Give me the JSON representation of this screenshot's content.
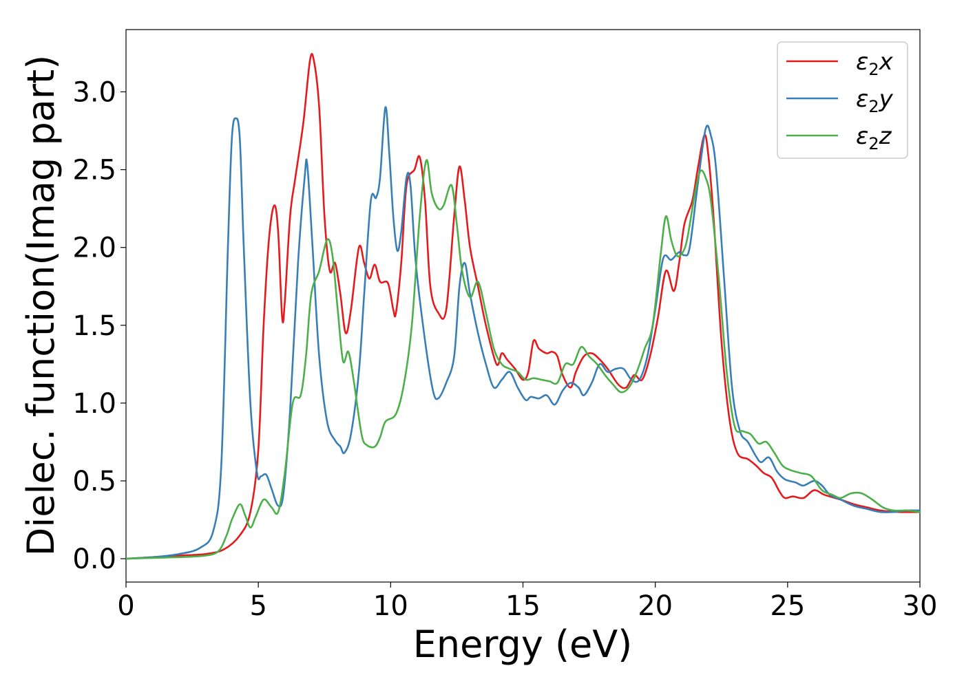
{
  "chart_data": {
    "type": "line",
    "title": "",
    "xlabel": "Energy (eV)",
    "ylabel": "Dielec. function(Imag part)",
    "xlim": [
      0,
      30
    ],
    "ylim": [
      -0.15,
      3.4
    ],
    "xticks": [
      0,
      5,
      10,
      15,
      20,
      25,
      30
    ],
    "xtick_labels": [
      "0",
      "5",
      "10",
      "15",
      "20",
      "25",
      "30"
    ],
    "yticks": [
      0.0,
      0.5,
      1.0,
      1.5,
      2.0,
      2.5,
      3.0
    ],
    "ytick_labels": [
      "0.0",
      "0.5",
      "1.0",
      "1.5",
      "2.0",
      "2.5",
      "3.0"
    ],
    "grid": false,
    "legend_position": "top-right",
    "series": [
      {
        "name": "ε₂x",
        "legend_base": "ε",
        "legend_sub": "2",
        "legend_suffix": "x",
        "color": "#e41a1c",
        "points": [
          [
            0,
            0
          ],
          [
            1,
            0.01
          ],
          [
            2,
            0.02
          ],
          [
            3,
            0.03
          ],
          [
            3.7,
            0.06
          ],
          [
            4.3,
            0.15
          ],
          [
            4.7,
            0.3
          ],
          [
            5.0,
            0.7
          ],
          [
            5.2,
            1.5
          ],
          [
            5.4,
            2.05
          ],
          [
            5.6,
            2.27
          ],
          [
            5.75,
            2.1
          ],
          [
            5.9,
            1.55
          ],
          [
            6.0,
            1.65
          ],
          [
            6.2,
            2.2
          ],
          [
            6.4,
            2.45
          ],
          [
            6.7,
            2.8
          ],
          [
            6.95,
            3.2
          ],
          [
            7.1,
            3.2
          ],
          [
            7.3,
            2.9
          ],
          [
            7.5,
            2.2
          ],
          [
            7.7,
            1.85
          ],
          [
            7.9,
            1.9
          ],
          [
            8.1,
            1.7
          ],
          [
            8.3,
            1.45
          ],
          [
            8.5,
            1.6
          ],
          [
            8.8,
            2.0
          ],
          [
            9.0,
            1.9
          ],
          [
            9.2,
            1.8
          ],
          [
            9.4,
            1.89
          ],
          [
            9.6,
            1.78
          ],
          [
            9.9,
            1.77
          ],
          [
            10.1,
            1.6
          ],
          [
            10.2,
            1.58
          ],
          [
            10.4,
            1.9
          ],
          [
            10.6,
            2.4
          ],
          [
            10.9,
            2.5
          ],
          [
            11.1,
            2.58
          ],
          [
            11.3,
            2.3
          ],
          [
            11.5,
            1.75
          ],
          [
            11.8,
            1.58
          ],
          [
            12.1,
            1.6
          ],
          [
            12.4,
            2.2
          ],
          [
            12.6,
            2.52
          ],
          [
            12.8,
            2.3
          ],
          [
            13.0,
            2.0
          ],
          [
            13.3,
            1.75
          ],
          [
            13.6,
            1.5
          ],
          [
            14.0,
            1.25
          ],
          [
            14.2,
            1.32
          ],
          [
            14.4,
            1.28
          ],
          [
            14.7,
            1.22
          ],
          [
            15.0,
            1.15
          ],
          [
            15.2,
            1.2
          ],
          [
            15.4,
            1.4
          ],
          [
            15.6,
            1.35
          ],
          [
            15.9,
            1.32
          ],
          [
            16.1,
            1.33
          ],
          [
            16.3,
            1.3
          ],
          [
            16.5,
            1.18
          ],
          [
            16.8,
            1.1
          ],
          [
            17.0,
            1.2
          ],
          [
            17.3,
            1.3
          ],
          [
            17.6,
            1.32
          ],
          [
            17.9,
            1.28
          ],
          [
            18.2,
            1.22
          ],
          [
            18.6,
            1.12
          ],
          [
            18.9,
            1.1
          ],
          [
            19.2,
            1.18
          ],
          [
            19.5,
            1.15
          ],
          [
            19.8,
            1.3
          ],
          [
            20.1,
            1.55
          ],
          [
            20.4,
            1.85
          ],
          [
            20.7,
            1.72
          ],
          [
            20.9,
            1.9
          ],
          [
            21.1,
            2.15
          ],
          [
            21.4,
            2.3
          ],
          [
            21.6,
            2.5
          ],
          [
            21.85,
            2.72
          ],
          [
            22.0,
            2.6
          ],
          [
            22.2,
            2.2
          ],
          [
            22.5,
            1.4
          ],
          [
            22.8,
            0.9
          ],
          [
            23.1,
            0.68
          ],
          [
            23.5,
            0.64
          ],
          [
            23.8,
            0.6
          ],
          [
            24.1,
            0.55
          ],
          [
            24.4,
            0.52
          ],
          [
            24.7,
            0.43
          ],
          [
            24.9,
            0.39
          ],
          [
            25.2,
            0.4
          ],
          [
            25.6,
            0.39
          ],
          [
            26.0,
            0.44
          ],
          [
            26.4,
            0.41
          ],
          [
            27.0,
            0.38
          ],
          [
            27.5,
            0.35
          ],
          [
            28.0,
            0.33
          ],
          [
            28.5,
            0.31
          ],
          [
            29.2,
            0.3
          ],
          [
            30,
            0.3
          ]
        ]
      },
      {
        "name": "ε₂y",
        "legend_base": "ε",
        "legend_sub": "2",
        "legend_suffix": "y",
        "color": "#377eb8",
        "points": [
          [
            0,
            0
          ],
          [
            1,
            0.01
          ],
          [
            2,
            0.03
          ],
          [
            2.8,
            0.07
          ],
          [
            3.3,
            0.18
          ],
          [
            3.6,
            0.6
          ],
          [
            3.85,
            2.0
          ],
          [
            4.0,
            2.7
          ],
          [
            4.15,
            2.83
          ],
          [
            4.3,
            2.7
          ],
          [
            4.45,
            2.0
          ],
          [
            4.7,
            1.0
          ],
          [
            4.95,
            0.55
          ],
          [
            5.1,
            0.53
          ],
          [
            5.3,
            0.54
          ],
          [
            5.5,
            0.45
          ],
          [
            5.75,
            0.34
          ],
          [
            5.95,
            0.42
          ],
          [
            6.2,
            0.95
          ],
          [
            6.5,
            1.9
          ],
          [
            6.75,
            2.45
          ],
          [
            6.85,
            2.53
          ],
          [
            7.05,
            2.0
          ],
          [
            7.3,
            1.3
          ],
          [
            7.6,
            0.88
          ],
          [
            7.9,
            0.76
          ],
          [
            8.1,
            0.72
          ],
          [
            8.25,
            0.68
          ],
          [
            8.5,
            0.8
          ],
          [
            8.8,
            1.2
          ],
          [
            9.0,
            1.7
          ],
          [
            9.25,
            2.3
          ],
          [
            9.45,
            2.32
          ],
          [
            9.6,
            2.45
          ],
          [
            9.8,
            2.9
          ],
          [
            9.95,
            2.6
          ],
          [
            10.1,
            2.2
          ],
          [
            10.25,
            1.98
          ],
          [
            10.4,
            2.1
          ],
          [
            10.6,
            2.45
          ],
          [
            10.75,
            2.4
          ],
          [
            10.95,
            1.9
          ],
          [
            11.3,
            1.4
          ],
          [
            11.6,
            1.08
          ],
          [
            11.8,
            1.03
          ],
          [
            12.1,
            1.13
          ],
          [
            12.4,
            1.3
          ],
          [
            12.6,
            1.75
          ],
          [
            12.8,
            1.9
          ],
          [
            13.0,
            1.7
          ],
          [
            13.3,
            1.45
          ],
          [
            13.6,
            1.25
          ],
          [
            13.9,
            1.1
          ],
          [
            14.2,
            1.15
          ],
          [
            14.5,
            1.2
          ],
          [
            14.8,
            1.1
          ],
          [
            15.1,
            1.02
          ],
          [
            15.3,
            1.04
          ],
          [
            15.6,
            1.03
          ],
          [
            15.9,
            1.05
          ],
          [
            16.2,
            0.99
          ],
          [
            16.5,
            1.08
          ],
          [
            16.8,
            1.13
          ],
          [
            17.1,
            1.1
          ],
          [
            17.3,
            1.05
          ],
          [
            17.6,
            1.13
          ],
          [
            17.9,
            1.25
          ],
          [
            18.2,
            1.2
          ],
          [
            18.5,
            1.22
          ],
          [
            18.8,
            1.22
          ],
          [
            19.1,
            1.15
          ],
          [
            19.4,
            1.15
          ],
          [
            19.7,
            1.3
          ],
          [
            20.0,
            1.6
          ],
          [
            20.3,
            1.93
          ],
          [
            20.6,
            1.92
          ],
          [
            20.9,
            1.97
          ],
          [
            21.1,
            1.95
          ],
          [
            21.3,
            2.0
          ],
          [
            21.6,
            2.4
          ],
          [
            21.9,
            2.76
          ],
          [
            22.1,
            2.72
          ],
          [
            22.3,
            2.5
          ],
          [
            22.6,
            1.8
          ],
          [
            22.9,
            1.1
          ],
          [
            23.2,
            0.82
          ],
          [
            23.5,
            0.75
          ],
          [
            23.8,
            0.66
          ],
          [
            24.0,
            0.62
          ],
          [
            24.3,
            0.65
          ],
          [
            24.6,
            0.56
          ],
          [
            24.9,
            0.51
          ],
          [
            25.3,
            0.49
          ],
          [
            25.6,
            0.47
          ],
          [
            26.0,
            0.5
          ],
          [
            26.3,
            0.47
          ],
          [
            26.6,
            0.41
          ],
          [
            27.0,
            0.38
          ],
          [
            27.5,
            0.34
          ],
          [
            28.0,
            0.32
          ],
          [
            28.5,
            0.3
          ],
          [
            29.0,
            0.3
          ],
          [
            29.5,
            0.31
          ],
          [
            30,
            0.31
          ]
        ]
      },
      {
        "name": "ε₂z",
        "legend_base": "ε",
        "legend_sub": "2",
        "legend_suffix": "z",
        "color": "#4daf4a",
        "points": [
          [
            0,
            0
          ],
          [
            1,
            0.005
          ],
          [
            2,
            0.01
          ],
          [
            3,
            0.02
          ],
          [
            3.5,
            0.05
          ],
          [
            3.8,
            0.15
          ],
          [
            4.0,
            0.25
          ],
          [
            4.3,
            0.35
          ],
          [
            4.5,
            0.28
          ],
          [
            4.7,
            0.2
          ],
          [
            4.9,
            0.27
          ],
          [
            5.2,
            0.38
          ],
          [
            5.5,
            0.33
          ],
          [
            5.75,
            0.3
          ],
          [
            6.0,
            0.55
          ],
          [
            6.3,
            1.0
          ],
          [
            6.6,
            1.05
          ],
          [
            6.8,
            1.3
          ],
          [
            7.0,
            1.7
          ],
          [
            7.3,
            1.85
          ],
          [
            7.6,
            2.05
          ],
          [
            7.8,
            1.95
          ],
          [
            8.0,
            1.6
          ],
          [
            8.2,
            1.27
          ],
          [
            8.4,
            1.33
          ],
          [
            8.6,
            1.15
          ],
          [
            8.9,
            0.8
          ],
          [
            9.1,
            0.73
          ],
          [
            9.4,
            0.72
          ],
          [
            9.6,
            0.78
          ],
          [
            9.8,
            0.88
          ],
          [
            10.2,
            0.93
          ],
          [
            10.5,
            1.12
          ],
          [
            10.8,
            1.5
          ],
          [
            11.1,
            2.2
          ],
          [
            11.35,
            2.56
          ],
          [
            11.55,
            2.35
          ],
          [
            11.8,
            2.25
          ],
          [
            12.0,
            2.27
          ],
          [
            12.3,
            2.4
          ],
          [
            12.5,
            2.15
          ],
          [
            12.7,
            1.85
          ],
          [
            13.0,
            1.68
          ],
          [
            13.3,
            1.78
          ],
          [
            13.6,
            1.58
          ],
          [
            13.9,
            1.35
          ],
          [
            14.2,
            1.25
          ],
          [
            14.5,
            1.22
          ],
          [
            14.8,
            1.2
          ],
          [
            15.1,
            1.15
          ],
          [
            15.4,
            1.16
          ],
          [
            15.7,
            1.15
          ],
          [
            16.0,
            1.14
          ],
          [
            16.3,
            1.13
          ],
          [
            16.6,
            1.25
          ],
          [
            16.9,
            1.25
          ],
          [
            17.2,
            1.36
          ],
          [
            17.5,
            1.3
          ],
          [
            17.8,
            1.25
          ],
          [
            18.1,
            1.18
          ],
          [
            18.4,
            1.12
          ],
          [
            18.7,
            1.07
          ],
          [
            19.0,
            1.1
          ],
          [
            19.3,
            1.2
          ],
          [
            19.6,
            1.35
          ],
          [
            19.9,
            1.5
          ],
          [
            20.2,
            1.95
          ],
          [
            20.4,
            2.2
          ],
          [
            20.6,
            2.05
          ],
          [
            20.8,
            1.95
          ],
          [
            21.0,
            1.96
          ],
          [
            21.2,
            2.05
          ],
          [
            21.5,
            2.35
          ],
          [
            21.7,
            2.49
          ],
          [
            21.9,
            2.45
          ],
          [
            22.1,
            2.3
          ],
          [
            22.4,
            1.8
          ],
          [
            22.7,
            1.2
          ],
          [
            23.0,
            0.85
          ],
          [
            23.3,
            0.82
          ],
          [
            23.6,
            0.8
          ],
          [
            23.9,
            0.74
          ],
          [
            24.2,
            0.75
          ],
          [
            24.5,
            0.68
          ],
          [
            24.8,
            0.6
          ],
          [
            25.1,
            0.57
          ],
          [
            25.5,
            0.55
          ],
          [
            25.9,
            0.53
          ],
          [
            26.3,
            0.44
          ],
          [
            26.7,
            0.41
          ],
          [
            27.0,
            0.39
          ],
          [
            27.4,
            0.42
          ],
          [
            27.8,
            0.42
          ],
          [
            28.2,
            0.38
          ],
          [
            28.6,
            0.33
          ],
          [
            29.0,
            0.31
          ],
          [
            29.5,
            0.31
          ],
          [
            30,
            0.3
          ]
        ]
      }
    ]
  }
}
